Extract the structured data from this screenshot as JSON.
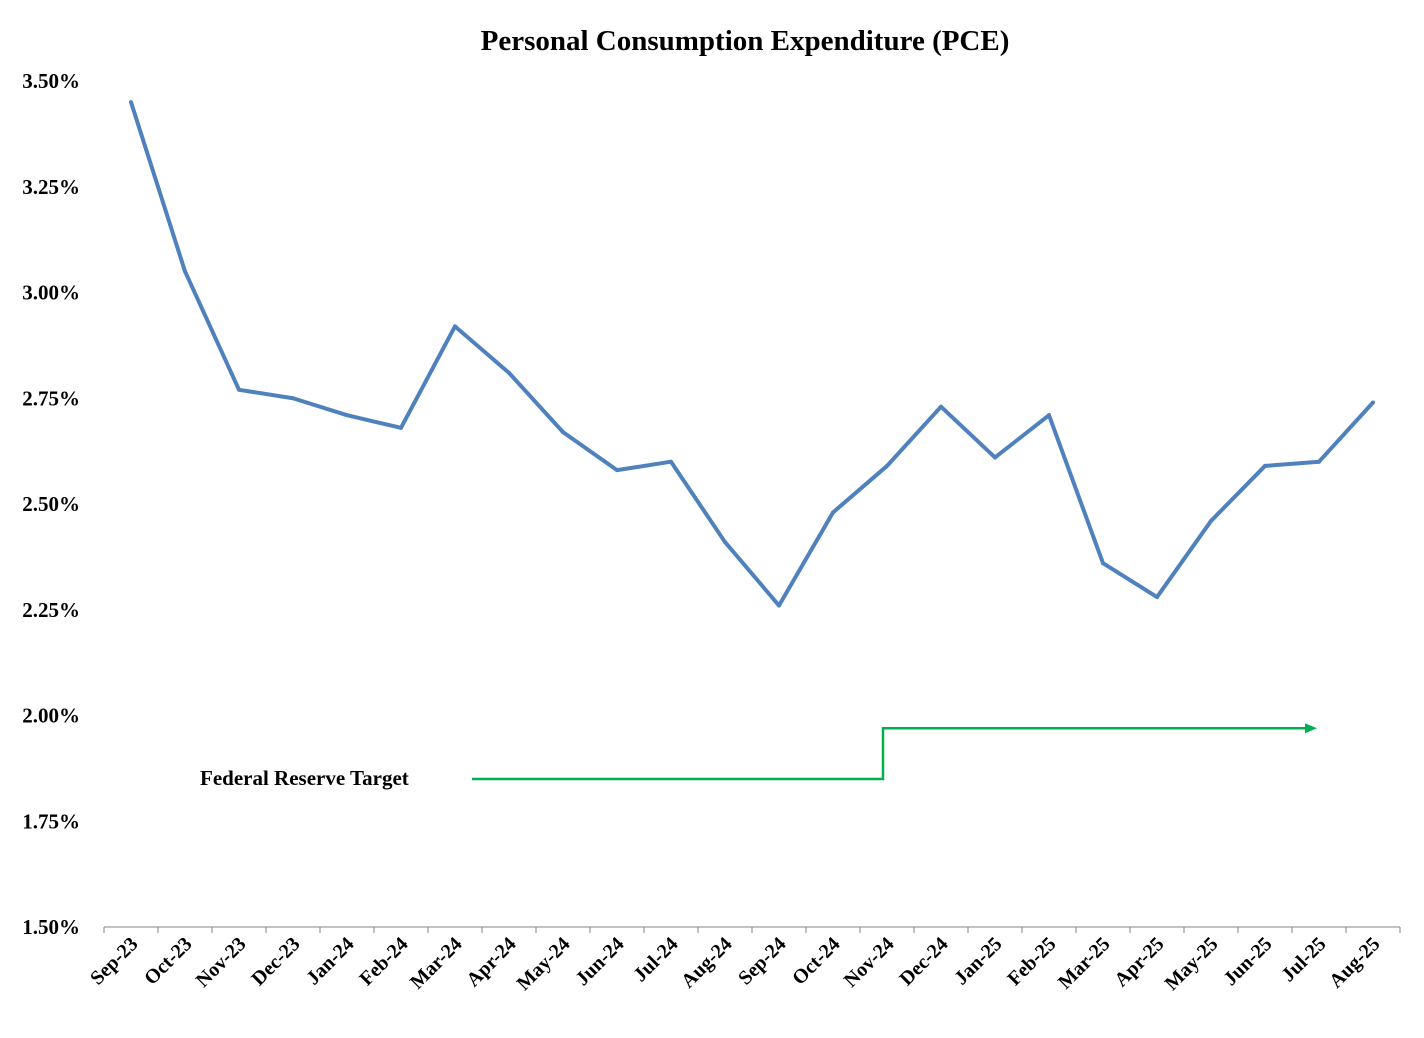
{
  "chart_data": {
    "type": "line",
    "title": "Personal Consumption Expenditure (PCE)",
    "xlabel": "",
    "ylabel": "",
    "categories": [
      "Sep-23",
      "Oct-23",
      "Nov-23",
      "Dec-23",
      "Jan-24",
      "Feb-24",
      "Mar-24",
      "Apr-24",
      "May-24",
      "Jun-24",
      "Jul-24",
      "Aug-24",
      "Sep-24",
      "Oct-24",
      "Nov-24",
      "Dec-24",
      "Jan-25",
      "Feb-25",
      "Mar-25",
      "Apr-25",
      "May-25",
      "Jun-25",
      "Jul-25",
      "Aug-25"
    ],
    "series": [
      {
        "values": [
          3.45,
          3.05,
          2.77,
          2.75,
          2.71,
          2.68,
          2.92,
          2.81,
          2.67,
          2.58,
          2.6,
          2.41,
          2.26,
          2.48,
          2.59,
          2.73,
          2.61,
          2.71,
          2.36,
          2.28,
          2.46,
          2.59,
          2.6,
          2.74
        ],
        "color": "#4F81BD"
      }
    ],
    "ylim": [
      1.5,
      3.5
    ],
    "yticks": [
      "1.50%",
      "1.75%",
      "2.00%",
      "2.25%",
      "2.50%",
      "2.75%",
      "3.00%",
      "3.25%",
      "3.50%"
    ],
    "grid": false,
    "legend": "none",
    "annotation": {
      "label": "Federal Reserve Target",
      "color": "#00B050",
      "levels": [
        1.85,
        1.97
      ],
      "step_at": "Nov-24",
      "ends_near": "Jul-25"
    }
  }
}
